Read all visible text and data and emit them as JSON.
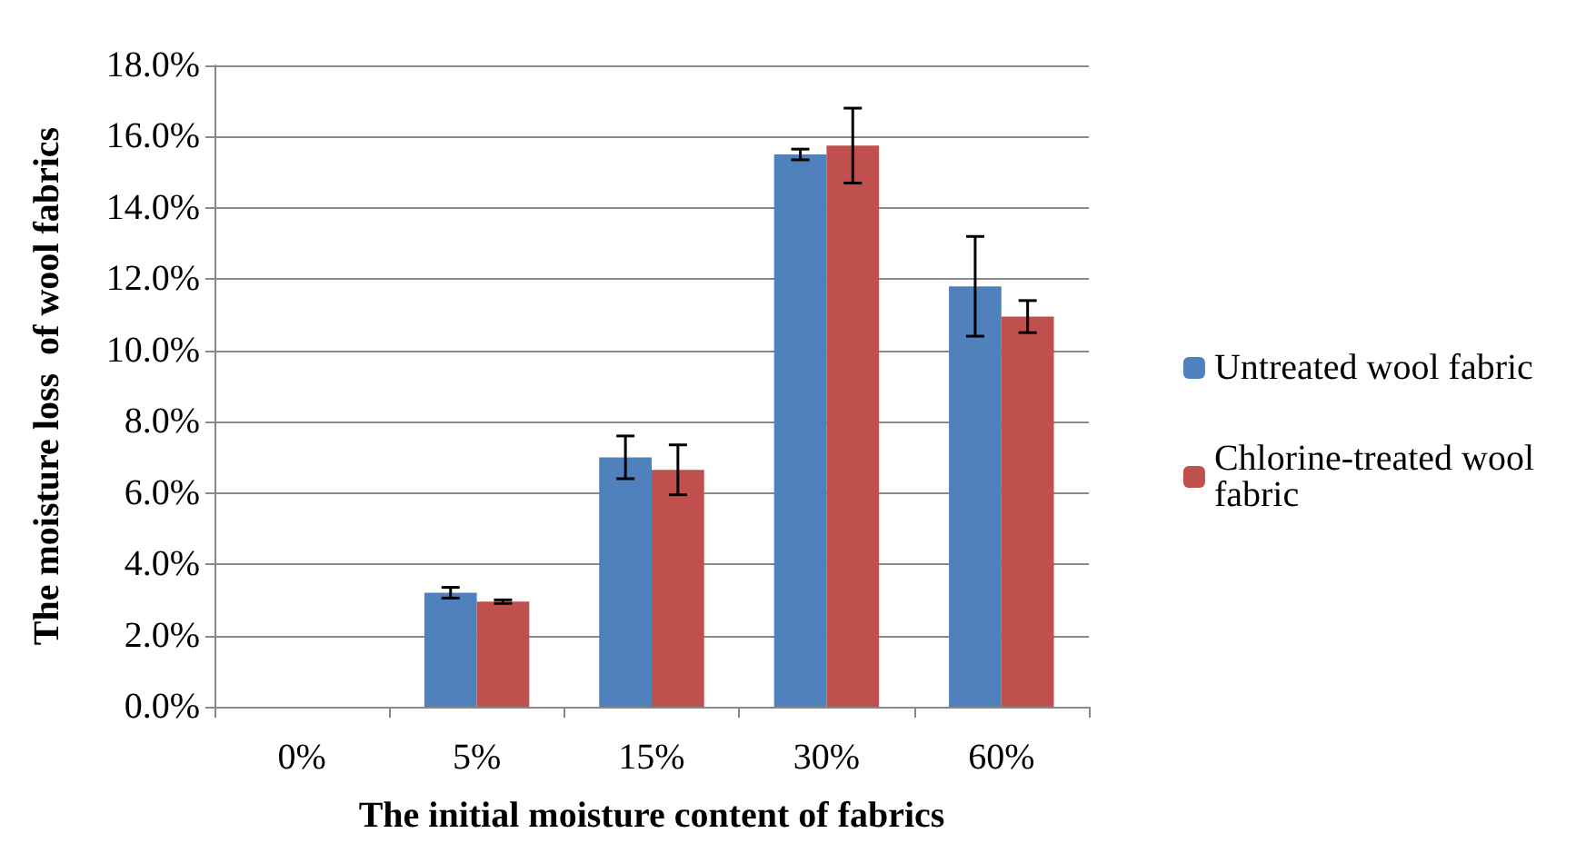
{
  "chart_data": {
    "type": "bar",
    "xlabel": "The initial moisture content of fabrics",
    "ylabel": "The moisture loss  of wool fabrics",
    "categories": [
      "0%",
      "5%",
      "15%",
      "30%",
      "60%"
    ],
    "series": [
      {
        "name": "Untreated wool fabric",
        "color": "#4f81bd",
        "values": [
          0,
          3.2,
          7.0,
          15.5,
          11.8
        ],
        "errors": [
          null,
          0.15,
          0.6,
          0.15,
          1.4
        ]
      },
      {
        "name": "Chlorine-treated wool fabric",
        "color": "#c0504d",
        "values": [
          0,
          2.95,
          6.65,
          15.75,
          10.95
        ],
        "errors": [
          null,
          0.05,
          0.7,
          1.05,
          0.45
        ]
      }
    ],
    "ylim": [
      0,
      18
    ],
    "yticks": [
      {
        "value": 0,
        "label": "0.0%"
      },
      {
        "value": 2,
        "label": "2.0%"
      },
      {
        "value": 4,
        "label": "4.0%"
      },
      {
        "value": 6,
        "label": "6.0%"
      },
      {
        "value": 8,
        "label": "8.0%"
      },
      {
        "value": 10,
        "label": "10.0%"
      },
      {
        "value": 12,
        "label": "12.0%"
      },
      {
        "value": 14,
        "label": "14.0%"
      },
      {
        "value": 16,
        "label": "16.0%"
      },
      {
        "value": 18,
        "label": "18.0%"
      }
    ],
    "grid": "y",
    "legend": "right"
  }
}
